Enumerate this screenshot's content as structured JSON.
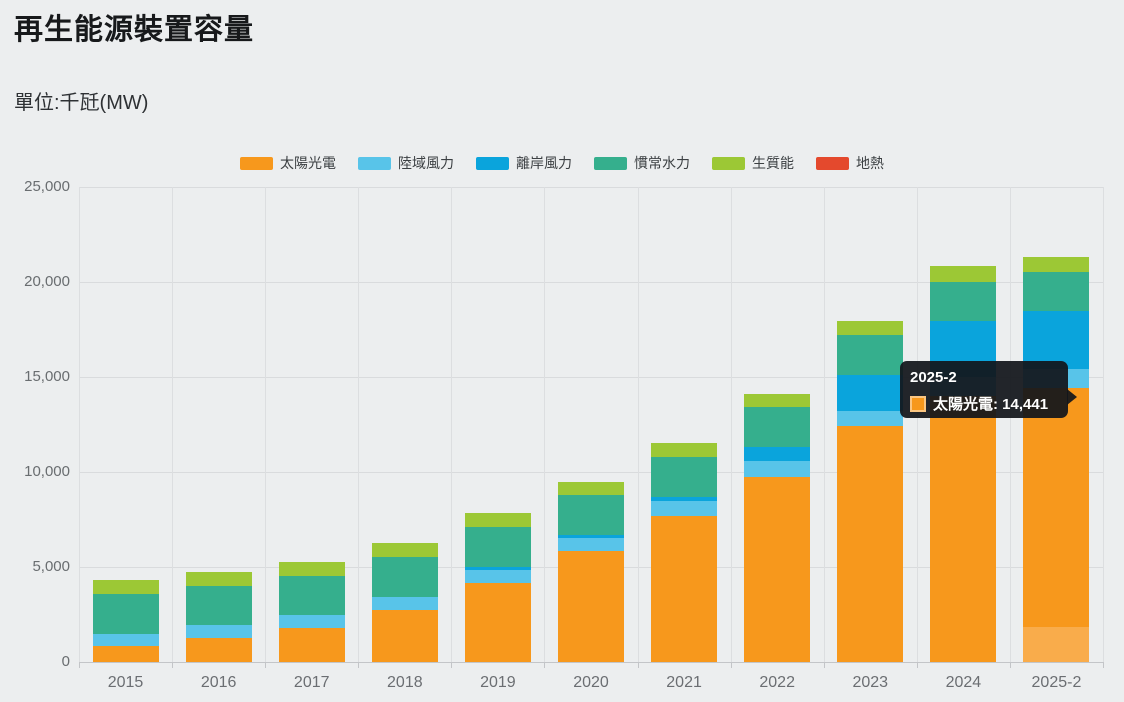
{
  "header": {
    "title": "再生能源裝置容量",
    "subtitle": "單位:千瓩(MW)"
  },
  "chart_data": {
    "type": "bar",
    "stacked": true,
    "title": "再生能源裝置容量",
    "unit_label": "單位:千瓩(MW)",
    "grid": true,
    "legend_position": "top",
    "ylim": [
      0,
      25000
    ],
    "ytick_interval": 5000,
    "ytick_labels": [
      "0",
      "5,000",
      "10,000",
      "15,000",
      "20,000",
      "25,000"
    ],
    "categories": [
      "2015",
      "2016",
      "2017",
      "2018",
      "2019",
      "2020",
      "2021",
      "2022",
      "2023",
      "2024",
      "2025-2"
    ],
    "series": [
      {
        "key": "solar",
        "name": "太陽光電",
        "color": "#F7981C",
        "values": [
          842,
          1245,
          1768,
          2738,
          4150,
          5817,
          7700,
          9724,
          12418,
          13980,
          14441
        ]
      },
      {
        "key": "onshore-wind",
        "name": "陸域風力",
        "color": "#58C4E9",
        "values": [
          647,
          682,
          684,
          704,
          718,
          733,
          751,
          852,
          800,
          1000,
          1000
        ]
      },
      {
        "key": "offshore-wind",
        "name": "離岸風力",
        "color": "#0AA4DC",
        "values": [
          0,
          0,
          8,
          8,
          128,
          128,
          237,
          745,
          1900,
          2950,
          3036
        ]
      },
      {
        "key": "hydro",
        "name": "慣常水力",
        "color": "#35AF8D",
        "values": [
          2089,
          2089,
          2089,
          2091,
          2093,
          2094,
          2094,
          2094,
          2094,
          2094,
          2052
        ]
      },
      {
        "key": "biomass",
        "name": "生質能",
        "color": "#9CC835",
        "values": [
          741,
          727,
          727,
          740,
          741,
          724,
          723,
          700,
          740,
          842,
          789
        ]
      },
      {
        "key": "geothermal",
        "name": "地熱",
        "color": "#E4492D",
        "values": [
          0,
          0,
          0,
          0,
          0,
          0,
          5,
          5,
          7,
          7,
          7
        ]
      }
    ],
    "hover_highlight": {
      "category": "2025-2",
      "series_key": "solar",
      "lighter_bottom_value": 1840,
      "color": "#F9AC4B"
    }
  },
  "tooltip": {
    "title": "2025-2",
    "series": "太陽光電",
    "value": "14,441",
    "text": "太陽光電: 14,441",
    "swatch_color": "#F7981C",
    "background": "#12161B"
  },
  "colors": {
    "page_background": "#ECEEEF",
    "gridline": "#D9DBDD",
    "axis_line": "#C3C5C8",
    "title_text": "#17191B",
    "axis_label_text": "#696D70"
  }
}
